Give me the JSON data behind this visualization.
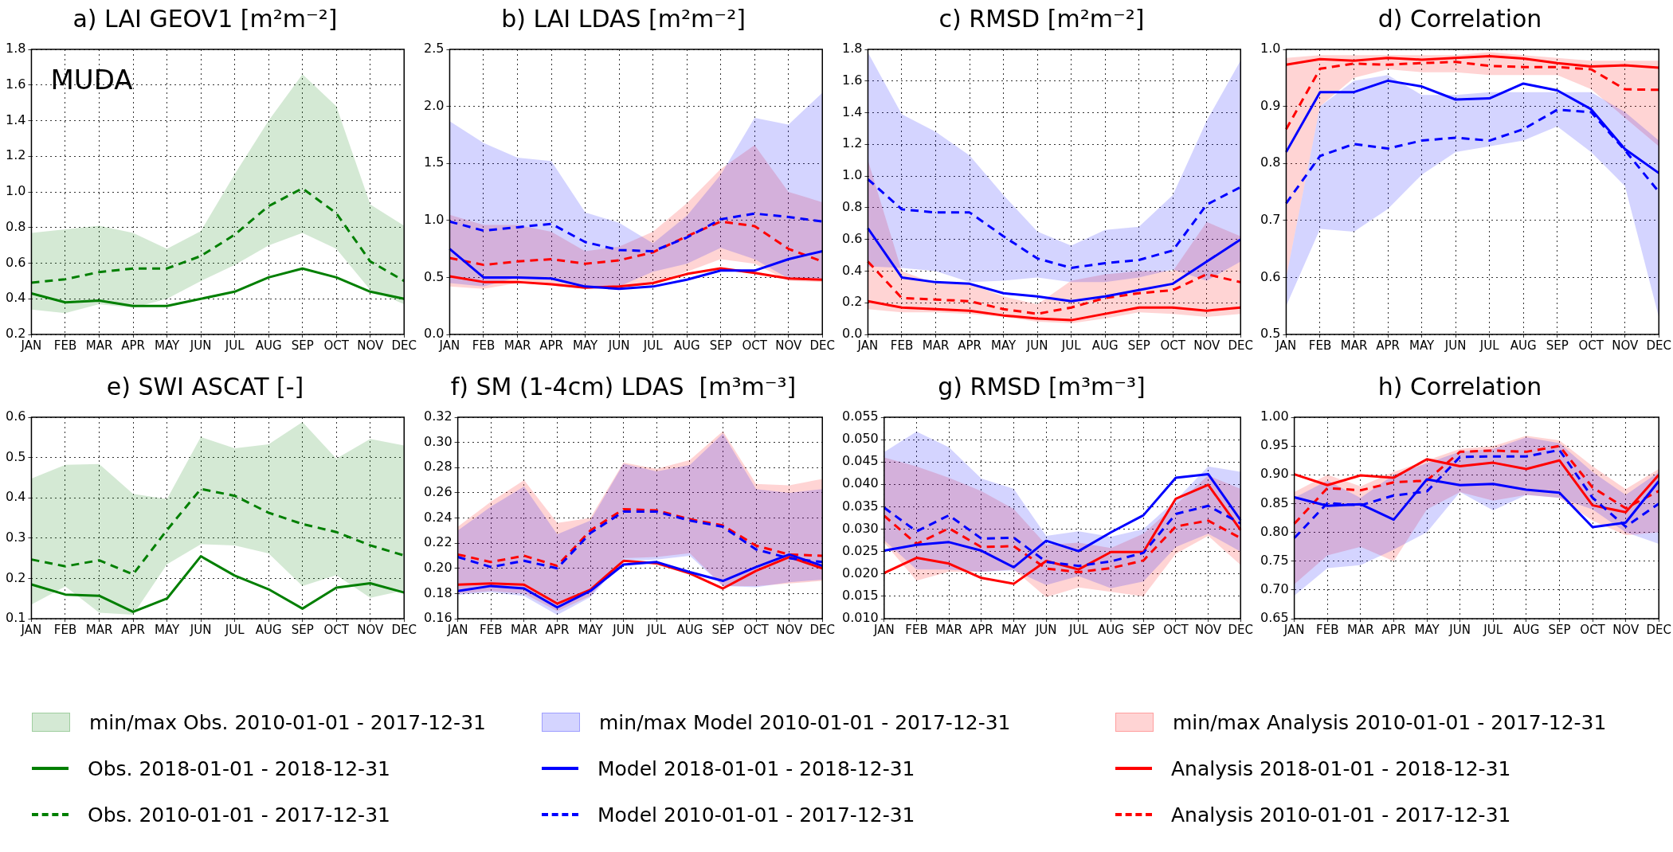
{
  "chart_data": [
    {
      "type": "line",
      "title": "a) LAI GEOV1 [m²m⁻²]",
      "annotations": [
        "MUDA",
        "min/max Obs. 2010-01-01 - 2017-12-31"
      ],
      "grid": true,
      "legend": "bottom",
      "categories": [
        "JAN",
        "FEB",
        "MAR",
        "APR",
        "MAY",
        "JUN",
        "JUL",
        "AUG",
        "SEP",
        "OCT",
        "NOV",
        "DEC"
      ],
      "ylim": [
        0.2,
        1.8
      ],
      "yticks": [
        0.2,
        0.4,
        0.6,
        0.8,
        {
          "value": 1,
          "label": "1.0"
        },
        1.2,
        1.4,
        1.6,
        1.8
      ],
      "series": [
        {
          "name": "Obs. 2018-01-01 - 2018-12-31",
          "color": "#007f00",
          "line_style": "solid",
          "values": [
            0.43,
            0.38,
            0.39,
            0.36,
            0.36,
            0.4,
            0.44,
            0.52,
            0.57,
            0.52,
            0.44,
            0.4
          ]
        },
        {
          "name": "Obs. 2010-01-01 - 2017-12-31",
          "color": "#007f00",
          "line_style": "dashed",
          "values": [
            0.49,
            0.51,
            0.55,
            0.57,
            0.57,
            0.64,
            0.76,
            0.92,
            1.02,
            0.88,
            0.61,
            0.5
          ],
          "lower": [
            0.34,
            0.32,
            0.37,
            0.35,
            0.4,
            0.5,
            0.59,
            0.7,
            0.77,
            0.68,
            0.45,
            0.37
          ],
          "upper": [
            0.77,
            0.79,
            0.81,
            0.77,
            0.68,
            0.78,
            1.1,
            1.4,
            1.66,
            1.48,
            0.93,
            0.81
          ]
        }
      ]
    },
    {
      "type": "line",
      "title": "b) LAI LDAS [m²m⁻²]",
      "annotations": [
        "min/max Model 2010-01-01 - 2017-12-31",
        "min/max Analysis 2010-01-01 - 2017-12-31"
      ],
      "grid": true,
      "legend": "bottom",
      "categories": [
        "JAN",
        "FEB",
        "MAR",
        "APR",
        "MAY",
        "JUN",
        "JUL",
        "AUG",
        "SEP",
        "OCT",
        "NOV",
        "DEC"
      ],
      "ylim": [
        0,
        2.5
      ],
      "yticks": [
        {
          "value": 0,
          "label": "0.0"
        },
        0.5,
        {
          "value": 1,
          "label": "1.0"
        },
        1.5,
        {
          "value": 2,
          "label": "2.0"
        },
        2.5
      ],
      "series": [
        {
          "name": "Model 2018-01-01 - 2018-12-31",
          "color": "#0000ff",
          "line_style": "solid",
          "values": [
            0.75,
            0.5,
            0.5,
            0.49,
            0.42,
            0.4,
            0.42,
            0.48,
            0.56,
            0.56,
            0.66,
            0.73
          ]
        },
        {
          "name": "Model 2010-01-01 - 2017-12-31",
          "color": "#0000ff",
          "line_style": "dashed",
          "values": [
            0.99,
            0.91,
            0.94,
            0.97,
            0.81,
            0.74,
            0.73,
            0.85,
            1.01,
            1.06,
            1.03,
            0.99
          ],
          "lower": [
            0.45,
            0.42,
            0.5,
            0.49,
            0.42,
            0.42,
            0.55,
            0.62,
            0.76,
            0.66,
            0.49,
            0.48
          ],
          "upper": [
            1.87,
            1.68,
            1.55,
            1.52,
            1.07,
            0.98,
            0.8,
            1.04,
            1.4,
            1.9,
            1.84,
            2.12
          ]
        },
        {
          "name": "Analysis 2018-01-01 - 2018-12-31",
          "color": "#ff0000",
          "line_style": "solid",
          "values": [
            0.51,
            0.46,
            0.46,
            0.44,
            0.41,
            0.42,
            0.45,
            0.53,
            0.58,
            0.54,
            0.49,
            0.48
          ]
        },
        {
          "name": "Analysis 2010-01-01 - 2017-12-31",
          "color": "#ff0000",
          "line_style": "dashed",
          "values": [
            0.67,
            0.61,
            0.64,
            0.66,
            0.62,
            0.65,
            0.72,
            0.86,
            0.99,
            0.95,
            0.75,
            0.64
          ],
          "lower": [
            0.42,
            0.4,
            0.45,
            0.43,
            0.4,
            0.42,
            0.45,
            0.55,
            0.66,
            0.62,
            0.47,
            0.46
          ],
          "upper": [
            1.05,
            0.96,
            0.96,
            0.9,
            0.73,
            0.77,
            0.9,
            1.15,
            1.45,
            1.66,
            1.25,
            1.16
          ]
        }
      ]
    },
    {
      "type": "line",
      "title": "c) RMSD [m²m⁻²]",
      "grid": true,
      "legend": "bottom",
      "categories": [
        "JAN",
        "FEB",
        "MAR",
        "APR",
        "MAY",
        "JUN",
        "JUL",
        "AUG",
        "SEP",
        "OCT",
        "NOV",
        "DEC"
      ],
      "ylim": [
        0,
        1.8
      ],
      "yticks": [
        {
          "value": 0,
          "label": "0.0"
        },
        0.2,
        0.4,
        0.6,
        0.8,
        {
          "value": 1,
          "label": "1.0"
        },
        1.2,
        1.4,
        1.6,
        1.8
      ],
      "series": [
        {
          "name": "Model 2018-01-01 - 2018-12-31",
          "color": "#0000ff",
          "line_style": "solid",
          "values": [
            0.67,
            0.36,
            0.33,
            0.32,
            0.26,
            0.24,
            0.21,
            0.24,
            0.28,
            0.32,
            0.46,
            0.6
          ]
        },
        {
          "name": "Model 2010-01-01 - 2017-12-31",
          "color": "#0000ff",
          "line_style": "dashed",
          "values": [
            0.98,
            0.79,
            0.77,
            0.77,
            0.62,
            0.48,
            0.42,
            0.45,
            0.47,
            0.53,
            0.82,
            0.93
          ],
          "lower": [
            0.43,
            0.42,
            0.4,
            0.33,
            0.34,
            0.36,
            0.33,
            0.33,
            0.36,
            0.41,
            0.34,
            0.46
          ],
          "upper": [
            1.78,
            1.39,
            1.28,
            1.13,
            0.88,
            0.65,
            0.56,
            0.66,
            0.68,
            0.88,
            1.35,
            1.73
          ]
        },
        {
          "name": "Analysis 2018-01-01 - 2018-12-31",
          "color": "#ff0000",
          "line_style": "solid",
          "values": [
            0.21,
            0.17,
            0.16,
            0.15,
            0.12,
            0.1,
            0.09,
            0.13,
            0.17,
            0.17,
            0.15,
            0.17
          ]
        },
        {
          "name": "Analysis 2010-01-01 - 2017-12-31",
          "color": "#ff0000",
          "line_style": "dashed",
          "values": [
            0.46,
            0.23,
            0.22,
            0.21,
            0.16,
            0.13,
            0.17,
            0.23,
            0.26,
            0.28,
            0.38,
            0.33
          ],
          "lower": [
            0.16,
            0.14,
            0.14,
            0.13,
            0.11,
            0.08,
            0.07,
            0.1,
            0.14,
            0.13,
            0.11,
            0.13
          ],
          "upper": [
            1.1,
            0.4,
            0.32,
            0.32,
            0.24,
            0.19,
            0.34,
            0.38,
            0.4,
            0.4,
            0.71,
            0.62
          ]
        }
      ]
    },
    {
      "type": "line",
      "title": "d) Correlation",
      "grid": true,
      "legend": "bottom",
      "categories": [
        "JAN",
        "FEB",
        "MAR",
        "APR",
        "MAY",
        "JUN",
        "JUL",
        "AUG",
        "SEP",
        "OCT",
        "NOV",
        "DEC"
      ],
      "ylim": [
        0.5,
        1
      ],
      "yticks": [
        0.5,
        0.6,
        0.7,
        0.8,
        0.9,
        {
          "value": 1,
          "label": "1.0"
        }
      ],
      "series": [
        {
          "name": "Model 2018-01-01 - 2018-12-31",
          "color": "#0000ff",
          "line_style": "solid",
          "values": [
            0.82,
            0.925,
            0.925,
            0.945,
            0.935,
            0.912,
            0.914,
            0.94,
            0.928,
            0.895,
            0.825,
            0.783
          ]
        },
        {
          "name": "Model 2010-01-01 - 2017-12-31",
          "color": "#0000ff",
          "line_style": "dashed",
          "values": [
            0.73,
            0.813,
            0.834,
            0.826,
            0.84,
            0.845,
            0.84,
            0.86,
            0.894,
            0.89,
            0.823,
            0.75
          ],
          "lower": [
            0.55,
            0.685,
            0.68,
            0.72,
            0.78,
            0.82,
            0.83,
            0.84,
            0.865,
            0.82,
            0.76,
            0.53
          ],
          "upper": [
            0.6,
            0.9,
            0.945,
            0.955,
            0.92,
            0.92,
            0.925,
            0.925,
            0.925,
            0.925,
            0.89,
            0.84
          ]
        },
        {
          "name": "Analysis 2018-01-01 - 2018-12-31",
          "color": "#ff0000",
          "line_style": "solid",
          "values": [
            0.973,
            0.983,
            0.98,
            0.985,
            0.982,
            0.985,
            0.988,
            0.984,
            0.976,
            0.97,
            0.972,
            0.968
          ]
        },
        {
          "name": "Analysis 2010-01-01 - 2017-12-31",
          "color": "#ff0000",
          "line_style": "dashed",
          "values": [
            0.86,
            0.966,
            0.975,
            0.973,
            0.976,
            0.978,
            0.971,
            0.969,
            0.969,
            0.965,
            0.93,
            0.929
          ],
          "lower": [
            0.6,
            0.9,
            0.95,
            0.965,
            0.96,
            0.96,
            0.955,
            0.955,
            0.955,
            0.93,
            0.88,
            0.83
          ],
          "upper": [
            0.985,
            0.99,
            0.99,
            0.99,
            0.99,
            0.99,
            0.995,
            0.99,
            0.985,
            0.98,
            0.98,
            0.98
          ]
        }
      ]
    },
    {
      "type": "line",
      "title": "e) SWI ASCAT [-]",
      "grid": true,
      "legend": "bottom",
      "categories": [
        "JAN",
        "FEB",
        "MAR",
        "APR",
        "MAY",
        "JUN",
        "JUL",
        "AUG",
        "SEP",
        "OCT",
        "NOV",
        "DEC"
      ],
      "ylim": [
        0.1,
        0.6
      ],
      "yticks": [
        0.1,
        0.2,
        0.3,
        0.4,
        0.5,
        0.6
      ],
      "series": [
        {
          "name": "Obs. 2018-01-01 - 2018-12-31",
          "color": "#007f00",
          "line_style": "solid",
          "values": [
            0.185,
            0.16,
            0.157,
            0.117,
            0.15,
            0.255,
            0.207,
            0.173,
            0.125,
            0.177,
            0.188,
            0.165
          ]
        },
        {
          "name": "Obs. 2010-01-01 - 2017-12-31",
          "color": "#007f00",
          "line_style": "dashed",
          "values": [
            0.247,
            0.23,
            0.245,
            0.21,
            0.32,
            0.422,
            0.405,
            0.363,
            0.335,
            0.315,
            0.282,
            0.257
          ],
          "lower": [
            0.135,
            0.18,
            0.115,
            0.11,
            0.235,
            0.285,
            0.282,
            0.262,
            0.181,
            0.208,
            0.152,
            0.17
          ],
          "upper": [
            0.448,
            0.482,
            0.484,
            0.41,
            0.397,
            0.551,
            0.523,
            0.533,
            0.588,
            0.497,
            0.546,
            0.53
          ]
        }
      ]
    },
    {
      "type": "line",
      "title": "f) SM (1-4cm) LDAS  [m³m⁻³]",
      "grid": true,
      "legend": "bottom",
      "categories": [
        "JAN",
        "FEB",
        "MAR",
        "APR",
        "MAY",
        "JUN",
        "JUL",
        "AUG",
        "SEP",
        "OCT",
        "NOV",
        "DEC"
      ],
      "ylim": [
        0.16,
        0.32
      ],
      "yticks": [
        0.16,
        0.18,
        {
          "value": 0.2,
          "label": "0.20"
        },
        0.22,
        0.24,
        0.26,
        0.28,
        {
          "value": 0.3,
          "label": "0.30"
        },
        0.32
      ],
      "series": [
        {
          "name": "Model 2018-01-01 - 2018-12-31",
          "color": "#0000ff",
          "line_style": "solid",
          "values": [
            0.182,
            0.186,
            0.184,
            0.169,
            0.182,
            0.203,
            0.205,
            0.197,
            0.19,
            0.201,
            0.211,
            0.202
          ]
        },
        {
          "name": "Model 2010-01-01 - 2017-12-31",
          "color": "#0000ff",
          "line_style": "dashed",
          "values": [
            0.209,
            0.201,
            0.206,
            0.2,
            0.228,
            0.245,
            0.245,
            0.238,
            0.233,
            0.215,
            0.208,
            0.205
          ],
          "lower": [
            0.179,
            0.181,
            0.178,
            0.163,
            0.177,
            0.206,
            0.207,
            0.21,
            0.186,
            0.185,
            0.189,
            0.191
          ],
          "upper": [
            0.23,
            0.249,
            0.265,
            0.227,
            0.238,
            0.283,
            0.277,
            0.282,
            0.307,
            0.263,
            0.26,
            0.263
          ]
        },
        {
          "name": "Analysis 2018-01-01 - 2018-12-31",
          "color": "#ff0000",
          "line_style": "solid",
          "values": [
            0.187,
            0.188,
            0.187,
            0.172,
            0.183,
            0.206,
            0.204,
            0.196,
            0.184,
            0.198,
            0.209,
            0.2
          ]
        },
        {
          "name": "Analysis 2010-01-01 - 2017-12-31",
          "color": "#ff0000",
          "line_style": "dashed",
          "values": [
            0.211,
            0.205,
            0.21,
            0.202,
            0.23,
            0.247,
            0.246,
            0.239,
            0.234,
            0.218,
            0.211,
            0.21
          ],
          "lower": [
            0.18,
            0.182,
            0.18,
            0.166,
            0.178,
            0.208,
            0.209,
            0.212,
            0.186,
            0.186,
            0.188,
            0.19
          ],
          "upper": [
            0.233,
            0.253,
            0.27,
            0.236,
            0.24,
            0.284,
            0.279,
            0.286,
            0.309,
            0.267,
            0.266,
            0.271
          ]
        }
      ]
    },
    {
      "type": "line",
      "title": "g) RMSD [m³m⁻³]",
      "grid": true,
      "legend": "bottom",
      "categories": [
        "JAN",
        "FEB",
        "MAR",
        "APR",
        "MAY",
        "JUN",
        "JUL",
        "AUG",
        "SEP",
        "OCT",
        "NOV",
        "DEC"
      ],
      "ylim": [
        0.01,
        0.055
      ],
      "yticks": [
        {
          "value": 0.01,
          "label": "0.010"
        },
        0.015,
        {
          "value": 0.02,
          "label": "0.020"
        },
        0.025,
        {
          "value": 0.03,
          "label": "0.030"
        },
        0.035,
        {
          "value": 0.04,
          "label": "0.040"
        },
        0.045,
        {
          "value": 0.05,
          "label": "0.050"
        },
        0.055
      ],
      "series": [
        {
          "name": "Model 2018-01-01 - 2018-12-31",
          "color": "#0000ff",
          "line_style": "solid",
          "values": [
            0.0252,
            0.0265,
            0.0271,
            0.0252,
            0.0215,
            0.0274,
            0.0251,
            0.0293,
            0.0331,
            0.0415,
            0.0423,
            0.032
          ]
        },
        {
          "name": "Model 2010-01-01 - 2017-12-31",
          "color": "#0000ff",
          "line_style": "dashed",
          "values": [
            0.0348,
            0.0295,
            0.0331,
            0.0279,
            0.0281,
            0.0227,
            0.0218,
            0.0228,
            0.0247,
            0.0334,
            0.0352,
            0.0313
          ],
          "lower": [
            0.0275,
            0.021,
            0.021,
            0.0205,
            0.0208,
            0.0175,
            0.0195,
            0.0168,
            0.0183,
            0.026,
            0.029,
            0.025
          ],
          "upper": [
            0.0472,
            0.0518,
            0.0483,
            0.0413,
            0.039,
            0.0285,
            0.0295,
            0.0283,
            0.03,
            0.0365,
            0.044,
            0.0428
          ]
        },
        {
          "name": "Analysis 2018-01-01 - 2018-12-31",
          "color": "#ff0000",
          "line_style": "solid",
          "values": [
            0.0202,
            0.0236,
            0.0223,
            0.0191,
            0.0178,
            0.0229,
            0.021,
            0.0249,
            0.0249,
            0.0368,
            0.0399,
            0.0298
          ]
        },
        {
          "name": "Analysis 2010-01-01 - 2017-12-31",
          "color": "#ff0000",
          "line_style": "dashed",
          "values": [
            0.033,
            0.0267,
            0.0302,
            0.026,
            0.0262,
            0.0212,
            0.0204,
            0.0213,
            0.023,
            0.0306,
            0.0319,
            0.028
          ],
          "lower": [
            0.027,
            0.0185,
            0.0205,
            0.0205,
            0.021,
            0.0148,
            0.017,
            0.016,
            0.015,
            0.0245,
            0.0285,
            0.022
          ],
          "upper": [
            0.046,
            0.044,
            0.0415,
            0.0385,
            0.0345,
            0.0265,
            0.027,
            0.0258,
            0.029,
            0.0355,
            0.042,
            0.039
          ]
        }
      ]
    },
    {
      "type": "line",
      "title": "h) Correlation",
      "grid": true,
      "legend": "bottom",
      "categories": [
        "JAN",
        "FEB",
        "MAR",
        "APR",
        "MAY",
        "JUN",
        "JUL",
        "AUG",
        "SEP",
        "OCT",
        "NOV",
        "DEC"
      ],
      "ylim": [
        0.65,
        1
      ],
      "yticks": [
        0.65,
        {
          "value": 0.7,
          "label": "0.70"
        },
        0.75,
        {
          "value": 0.8,
          "label": "0.80"
        },
        0.85,
        {
          "value": 0.9,
          "label": "0.90"
        },
        0.95,
        {
          "value": 1,
          "label": "1.00"
        }
      ],
      "series": [
        {
          "name": "Model 2018-01-01 - 2018-12-31",
          "color": "#0000ff",
          "line_style": "solid",
          "values": [
            0.861,
            0.846,
            0.849,
            0.822,
            0.892,
            0.882,
            0.884,
            0.874,
            0.869,
            0.809,
            0.817,
            0.889
          ]
        },
        {
          "name": "Model 2010-01-01 - 2017-12-31",
          "color": "#0000ff",
          "line_style": "dashed",
          "values": [
            0.79,
            0.851,
            0.847,
            0.864,
            0.871,
            0.931,
            0.932,
            0.932,
            0.943,
            0.86,
            0.81,
            0.85
          ],
          "lower": [
            0.69,
            0.738,
            0.743,
            0.77,
            0.8,
            0.87,
            0.838,
            0.865,
            0.86,
            0.84,
            0.8,
            0.78
          ],
          "upper": [
            0.86,
            0.89,
            0.86,
            0.9,
            0.92,
            0.94,
            0.945,
            0.965,
            0.955,
            0.905,
            0.865,
            0.905
          ]
        },
        {
          "name": "Analysis 2018-01-01 - 2018-12-31",
          "color": "#ff0000",
          "line_style": "solid",
          "values": [
            0.901,
            0.882,
            0.899,
            0.895,
            0.927,
            0.915,
            0.921,
            0.91,
            0.925,
            0.847,
            0.835,
            0.9
          ]
        },
        {
          "name": "Analysis 2010-01-01 - 2017-12-31",
          "color": "#ff0000",
          "line_style": "dashed",
          "values": [
            0.815,
            0.877,
            0.873,
            0.887,
            0.89,
            0.94,
            0.942,
            0.94,
            0.95,
            0.878,
            0.842,
            0.872
          ],
          "lower": [
            0.71,
            0.76,
            0.775,
            0.75,
            0.84,
            0.87,
            0.855,
            0.865,
            0.86,
            0.82,
            0.795,
            0.8
          ],
          "upper": [
            0.87,
            0.9,
            0.88,
            0.905,
            0.925,
            0.945,
            0.95,
            0.968,
            0.96,
            0.915,
            0.875,
            0.91
          ]
        }
      ]
    }
  ]
}
